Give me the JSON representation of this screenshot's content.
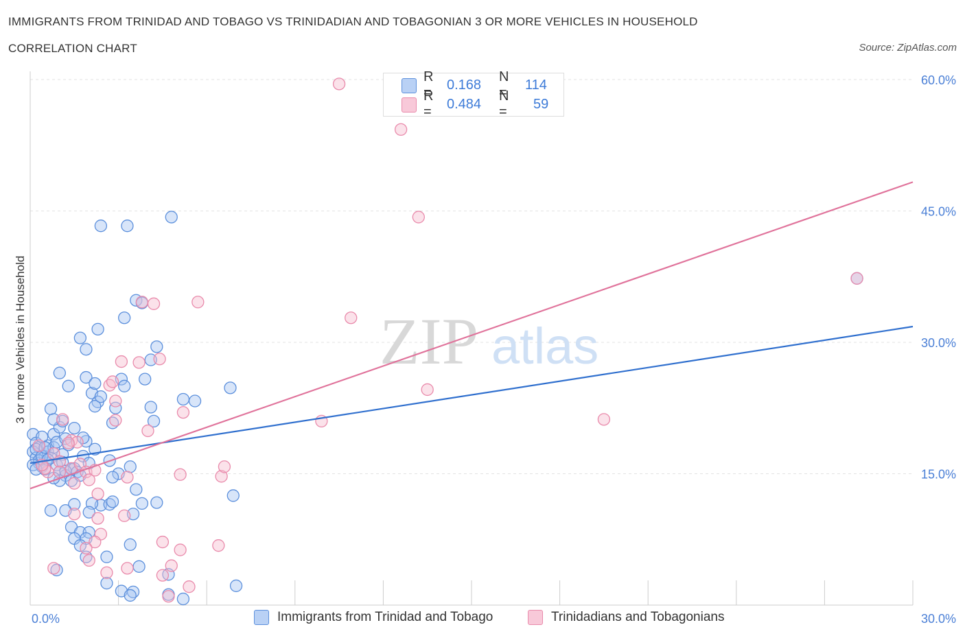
{
  "header": {
    "title": "IMMIGRANTS FROM TRINIDAD AND TOBAGO VS TRINIDADIAN AND TOBAGONIAN 3 OR MORE VEHICLES IN HOUSEHOLD",
    "subtitle": "CORRELATION CHART",
    "source": "Source: ZipAtlas.com"
  },
  "watermark": {
    "zip": "ZIP",
    "atlas": "atlas"
  },
  "stats": [
    {
      "r_label": "R =",
      "r_value": "0.168",
      "n_label": "N =",
      "n_value": "114"
    },
    {
      "r_label": "R =",
      "r_value": "0.484",
      "n_label": "N =",
      "n_value": "59"
    }
  ],
  "colors": {
    "blue_fill": "#a9c6f2",
    "blue_stroke": "#5b8fdc",
    "blue_line": "#2f6fce",
    "pink_fill": "#f6bfd1",
    "pink_stroke": "#e98aab",
    "pink_line": "#e0739b",
    "tick_text": "#4a7fd6",
    "grid": "#e2e2e2"
  },
  "chart_data": {
    "type": "scatter",
    "xlabel": "",
    "ylabel": "3 or more Vehicles in Household",
    "xlim": [
      0,
      30
    ],
    "ylim": [
      0,
      60
    ],
    "x_ticks": [
      "0.0%",
      "30.0%"
    ],
    "y_ticks": [
      "15.0%",
      "30.0%",
      "45.0%",
      "60.0%"
    ],
    "y_tick_values": [
      15,
      30,
      45,
      60
    ],
    "grid": true,
    "legend_position": "bottom",
    "series": [
      {
        "name": "Immigrants from Trinidad and Tobago",
        "color": "#5b8fdc",
        "trend": {
          "x": [
            0,
            30
          ],
          "y": [
            16.2,
            31.8
          ]
        },
        "points": [
          [
            0.1,
            19.5
          ],
          [
            0.2,
            18.5
          ],
          [
            0.3,
            18.0
          ],
          [
            0.1,
            17.5
          ],
          [
            0.2,
            16.8
          ],
          [
            0.3,
            16.2
          ],
          [
            0.4,
            15.8
          ],
          [
            0.5,
            17.0
          ],
          [
            0.6,
            18.2
          ],
          [
            0.4,
            19.2
          ],
          [
            0.2,
            17.8
          ],
          [
            0.3,
            16.5
          ],
          [
            0.5,
            15.5
          ],
          [
            0.1,
            16.0
          ],
          [
            0.6,
            17.5
          ],
          [
            0.7,
            16.8
          ],
          [
            0.8,
            18.0
          ],
          [
            0.9,
            16.0
          ],
          [
            1.0,
            15.2
          ],
          [
            1.1,
            17.2
          ],
          [
            0.8,
            19.5
          ],
          [
            0.9,
            18.6
          ],
          [
            1.0,
            20.3
          ],
          [
            1.1,
            21.0
          ],
          [
            0.7,
            22.4
          ],
          [
            0.8,
            21.2
          ],
          [
            1.2,
            19.0
          ],
          [
            1.3,
            18.3
          ],
          [
            1.4,
            15.5
          ],
          [
            1.5,
            15.6
          ],
          [
            1.6,
            15.2
          ],
          [
            1.2,
            14.8
          ],
          [
            1.0,
            14.2
          ],
          [
            0.8,
            14.5
          ],
          [
            1.4,
            14.2
          ],
          [
            1.7,
            14.8
          ],
          [
            1.9,
            18.7
          ],
          [
            1.8,
            17.0
          ],
          [
            2.0,
            16.2
          ],
          [
            2.2,
            17.8
          ],
          [
            1.8,
            19.1
          ],
          [
            1.5,
            20.2
          ],
          [
            1.0,
            26.5
          ],
          [
            1.3,
            25.0
          ],
          [
            1.9,
            26.0
          ],
          [
            2.1,
            24.2
          ],
          [
            2.2,
            25.3
          ],
          [
            1.7,
            30.5
          ],
          [
            1.9,
            29.2
          ],
          [
            2.3,
            31.5
          ],
          [
            3.2,
            32.8
          ],
          [
            3.6,
            34.8
          ],
          [
            3.8,
            34.5
          ],
          [
            4.1,
            28.0
          ],
          [
            4.3,
            29.5
          ],
          [
            3.9,
            25.8
          ],
          [
            3.1,
            25.8
          ],
          [
            3.2,
            25.0
          ],
          [
            4.1,
            22.6
          ],
          [
            4.2,
            21.0
          ],
          [
            2.3,
            23.2
          ],
          [
            2.2,
            22.7
          ],
          [
            2.9,
            22.5
          ],
          [
            2.8,
            20.8
          ],
          [
            2.7,
            16.5
          ],
          [
            3.0,
            15.0
          ],
          [
            2.8,
            14.6
          ],
          [
            3.4,
            15.8
          ],
          [
            3.6,
            13.2
          ],
          [
            3.5,
            10.4
          ],
          [
            2.4,
            11.4
          ],
          [
            2.7,
            11.5
          ],
          [
            2.8,
            11.8
          ],
          [
            3.8,
            11.6
          ],
          [
            4.3,
            11.7
          ],
          [
            2.1,
            11.6
          ],
          [
            2.0,
            10.6
          ],
          [
            1.5,
            11.5
          ],
          [
            1.2,
            10.8
          ],
          [
            0.7,
            10.8
          ],
          [
            1.4,
            8.9
          ],
          [
            1.7,
            8.3
          ],
          [
            2.0,
            8.3
          ],
          [
            1.5,
            7.6
          ],
          [
            1.9,
            7.6
          ],
          [
            1.7,
            6.8
          ],
          [
            1.9,
            5.5
          ],
          [
            2.6,
            5.5
          ],
          [
            3.4,
            6.9
          ],
          [
            3.7,
            4.4
          ],
          [
            0.9,
            4.0
          ],
          [
            2.6,
            2.5
          ],
          [
            3.1,
            1.6
          ],
          [
            3.5,
            1.5
          ],
          [
            3.4,
            1.1
          ],
          [
            4.7,
            1.2
          ],
          [
            5.2,
            0.7
          ],
          [
            4.7,
            3.5
          ],
          [
            7.0,
            2.2
          ],
          [
            6.9,
            12.5
          ],
          [
            5.2,
            23.5
          ],
          [
            5.6,
            23.3
          ],
          [
            6.8,
            24.8
          ],
          [
            4.8,
            44.3
          ],
          [
            2.4,
            43.3
          ],
          [
            3.3,
            43.3
          ],
          [
            2.4,
            23.8
          ],
          [
            0.2,
            15.5
          ],
          [
            0.4,
            17.0
          ],
          [
            0.6,
            16.6
          ],
          [
            1.1,
            16.3
          ],
          [
            0.5,
            18.0
          ],
          [
            1.2,
            15.3
          ],
          [
            28.1,
            37.3
          ]
        ]
      },
      {
        "name": "Trinidadians and Tobagonians",
        "color": "#e98aab",
        "trend": {
          "x": [
            0,
            30
          ],
          "y": [
            13.3,
            48.3
          ]
        },
        "points": [
          [
            10.5,
            59.5
          ],
          [
            12.6,
            54.3
          ],
          [
            13.2,
            44.3
          ],
          [
            28.1,
            37.3
          ],
          [
            10.9,
            32.8
          ],
          [
            5.7,
            34.6
          ],
          [
            4.2,
            34.4
          ],
          [
            3.8,
            34.6
          ],
          [
            4.4,
            28.1
          ],
          [
            3.1,
            27.8
          ],
          [
            3.7,
            27.7
          ],
          [
            2.7,
            25.1
          ],
          [
            2.8,
            25.5
          ],
          [
            2.9,
            23.3
          ],
          [
            5.2,
            22.0
          ],
          [
            2.9,
            21.1
          ],
          [
            1.1,
            21.2
          ],
          [
            4.0,
            19.9
          ],
          [
            9.9,
            21.0
          ],
          [
            13.5,
            24.6
          ],
          [
            19.5,
            21.2
          ],
          [
            1.4,
            18.8
          ],
          [
            1.6,
            18.6
          ],
          [
            0.3,
            18.2
          ],
          [
            0.8,
            17.3
          ],
          [
            1.0,
            16.4
          ],
          [
            0.6,
            15.2
          ],
          [
            0.5,
            15.6
          ],
          [
            1.4,
            15.6
          ],
          [
            1.7,
            16.1
          ],
          [
            1.9,
            15.2
          ],
          [
            2.2,
            15.4
          ],
          [
            3.3,
            14.6
          ],
          [
            2.0,
            14.3
          ],
          [
            1.5,
            13.9
          ],
          [
            2.3,
            12.7
          ],
          [
            1.5,
            10.4
          ],
          [
            2.3,
            9.9
          ],
          [
            3.2,
            10.2
          ],
          [
            5.1,
            14.9
          ],
          [
            6.5,
            14.7
          ],
          [
            6.6,
            15.8
          ],
          [
            4.5,
            7.2
          ],
          [
            5.1,
            6.3
          ],
          [
            6.4,
            6.8
          ],
          [
            2.4,
            8.1
          ],
          [
            2.2,
            7.2
          ],
          [
            1.9,
            6.5
          ],
          [
            2.0,
            5.1
          ],
          [
            2.6,
            3.7
          ],
          [
            3.3,
            4.2
          ],
          [
            0.8,
            4.2
          ],
          [
            4.5,
            3.4
          ],
          [
            4.8,
            4.5
          ],
          [
            5.4,
            2.1
          ],
          [
            4.7,
            1.0
          ],
          [
            1.3,
            18.5
          ],
          [
            0.4,
            16.0
          ],
          [
            1.0,
            15.2
          ]
        ]
      }
    ]
  },
  "legend": [
    {
      "label": "Immigrants from Trinidad and Tobago"
    },
    {
      "label": "Trinidadians and Tobagonians"
    }
  ]
}
